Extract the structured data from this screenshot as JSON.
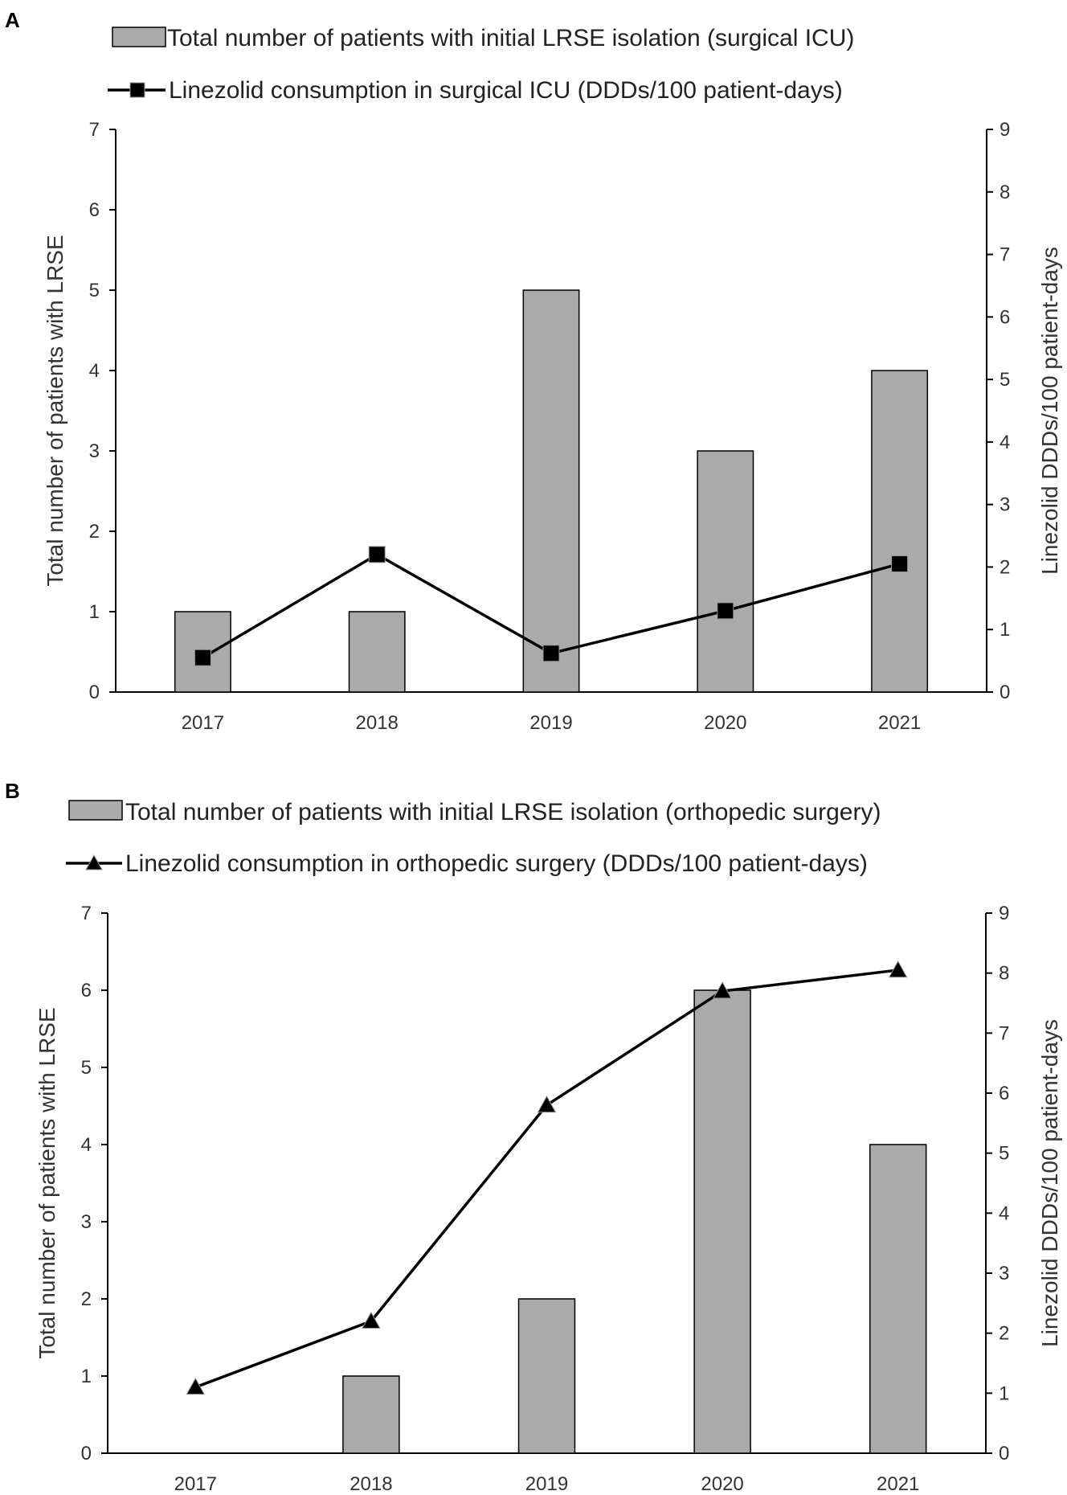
{
  "chart_data": [
    {
      "panel": "A",
      "type": "bar",
      "categories": [
        "2017",
        "2018",
        "2019",
        "2020",
        "2021"
      ],
      "series": [
        {
          "name": "Total number of patients with initial LRSE isolation (surgical ICU)",
          "kind": "bar",
          "axis": "left",
          "values": [
            1,
            1,
            5,
            3,
            4
          ]
        },
        {
          "name": "Linezolid consumption in surgical ICU (DDDs/100 patient-days)",
          "kind": "line",
          "marker": "square",
          "axis": "right",
          "values": [
            0.55,
            2.2,
            0.62,
            1.3,
            2.05
          ]
        }
      ],
      "ylabel_left": "Total number of patients with LRSE",
      "ylabel_right": "Linezolid DDDs/100 patient-days",
      "ylim_left": [
        0,
        7
      ],
      "ylim_right": [
        0,
        9
      ],
      "yticks_left": [
        "0",
        "1",
        "2",
        "3",
        "4",
        "5",
        "6",
        "7"
      ],
      "yticks_right": [
        "0",
        "1",
        "2",
        "3",
        "4",
        "5",
        "6",
        "7",
        "8",
        "9"
      ],
      "legend": "top",
      "colors": {
        "bar": "#aaaaaa",
        "line": "#000000",
        "marker": "#000000"
      }
    },
    {
      "panel": "B",
      "type": "bar",
      "categories": [
        "2017",
        "2018",
        "2019",
        "2020",
        "2021"
      ],
      "series": [
        {
          "name": "Total number of patients with initial LRSE isolation (orthopedic surgery)",
          "kind": "bar",
          "axis": "left",
          "values": [
            0,
            1,
            2,
            6,
            4
          ]
        },
        {
          "name": "Linezolid consumption in orthopedic surgery (DDDs/100 patient-days)",
          "kind": "line",
          "marker": "triangle",
          "axis": "right",
          "values": [
            1.1,
            2.2,
            5.8,
            7.7,
            8.05
          ]
        }
      ],
      "ylabel_left": "Total number of patients with LRSE",
      "ylabel_right": "Linezolid DDDs/100 patient-days",
      "ylim_left": [
        0,
        7
      ],
      "ylim_right": [
        0,
        9
      ],
      "yticks_left": [
        "0",
        "1",
        "2",
        "3",
        "4",
        "5",
        "6",
        "7"
      ],
      "yticks_right": [
        "0",
        "1",
        "2",
        "3",
        "4",
        "5",
        "6",
        "7",
        "8",
        "9"
      ],
      "legend": "top",
      "colors": {
        "bar": "#aaaaaa",
        "line": "#000000",
        "marker": "#000000"
      }
    }
  ]
}
